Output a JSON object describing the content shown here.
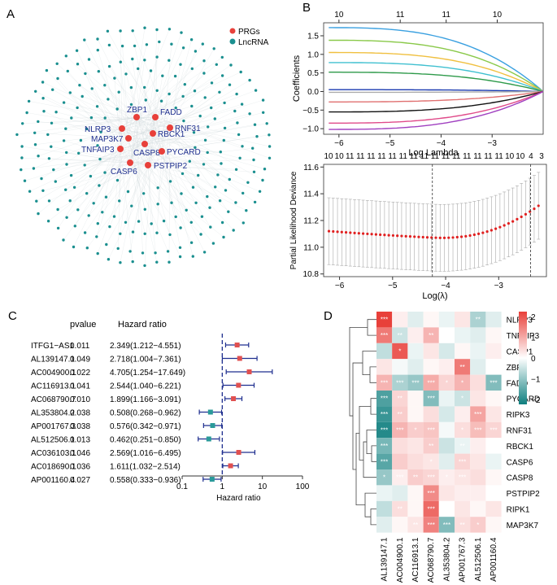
{
  "panel_labels": {
    "a": "A",
    "b": "B",
    "c": "C",
    "d": "D"
  },
  "colors": {
    "prg": "#e8403a",
    "lnc": "#1a8f8f",
    "gene_text": "#1f2f8f",
    "forest_point": "#e05050",
    "forest_point_low": "#2a9a9a",
    "forest_bar": "#1f2f8f",
    "heat_high": "#e8403a",
    "heat_mid": "#ffffff",
    "heat_low": "#0f7f7f"
  },
  "chart_data": [
    {
      "id": "network",
      "type": "network",
      "legend": [
        {
          "label": "PRGs",
          "color": "#e8403a"
        },
        {
          "label": "LncRNA",
          "color": "#1a8f8f"
        }
      ],
      "hub_genes": [
        "ZBP1",
        "FADD",
        "NLRP3",
        "RNF31",
        "MAP3K7",
        "RBCK1",
        "TNFAIP3",
        "CASP8",
        "PYCARD",
        "CASP6",
        "PSTPIP2"
      ]
    },
    {
      "id": "lasso_coef",
      "type": "line",
      "xlabel": "Log Lambda",
      "ylabel": "Coefficients",
      "xlim": [
        -6.3,
        -2.0
      ],
      "ylim": [
        -1.15,
        1.85
      ],
      "xticks": [
        -6,
        -5,
        -4,
        -3
      ],
      "yticks": [
        -1.0,
        -0.5,
        0.0,
        0.5,
        1.0,
        1.5
      ],
      "top_ticks": {
        "positions": [
          -6,
          -4.8,
          -3.9,
          -2.9
        ],
        "labels": [
          "10",
          "11",
          "11",
          "10"
        ]
      },
      "series": [
        {
          "name": "s1",
          "color": "#3aa0e0",
          "start": 1.72
        },
        {
          "name": "s2",
          "color": "#8ac94a",
          "start": 1.38
        },
        {
          "name": "s3",
          "color": "#f0c040",
          "start": 1.05
        },
        {
          "name": "s4",
          "color": "#40c0d0",
          "start": 0.78
        },
        {
          "name": "s5",
          "color": "#2e9a4a",
          "start": 0.52
        },
        {
          "name": "s6",
          "color": "#1a3ab0",
          "start": 0.05
        },
        {
          "name": "s7",
          "color": "#aaaaaa",
          "start": -0.02
        },
        {
          "name": "s8",
          "color": "#e07070",
          "start": -0.28
        },
        {
          "name": "s9",
          "color": "#111111",
          "start": -0.55
        },
        {
          "name": "s10",
          "color": "#e04b8a",
          "start": -0.85
        },
        {
          "name": "s11",
          "color": "#a040c0",
          "start": -1.02
        }
      ]
    },
    {
      "id": "lasso_cv",
      "type": "errorbar",
      "xlabel": "Log(λ)",
      "ylabel": "Partial Likelihood Deviance",
      "xlim": [
        -6.3,
        -2.1
      ],
      "ylim": [
        10.78,
        11.62
      ],
      "xticks": [
        -6,
        -5,
        -4,
        -3
      ],
      "yticks": [
        10.8,
        11.0,
        11.2,
        11.4,
        11.6
      ],
      "top_labels": [
        "10",
        "10",
        "11",
        "11",
        "11",
        "11",
        "11",
        "11",
        "11",
        "11",
        "11",
        "11",
        "11",
        "11",
        "11",
        "11",
        "11",
        "10",
        "10",
        "4",
        "3"
      ],
      "lambda_min": -4.25,
      "lambda_1se": -2.4,
      "curve": {
        "x_start": -6.2,
        "x_end": -2.25,
        "points": 50,
        "min_at": -4.1,
        "min_val": 11.07,
        "left_val": 11.12,
        "right_val": 11.31,
        "se": 0.25
      }
    },
    {
      "id": "forest",
      "type": "forest",
      "header_pvalue": "pvalue",
      "header_hr": "Hazard ratio",
      "xlabel": "Hazard ratio",
      "xscale": "log",
      "xlim": [
        0.1,
        100
      ],
      "xticks": [
        0.1,
        1,
        10,
        100
      ],
      "xtick_labels": [
        "0.1",
        "1",
        "10",
        "100"
      ],
      "rows": [
        {
          "gene": "ITFG1−AS1",
          "pvalue": "0.011",
          "hr_text": "2.349(1.212−4.551)",
          "hr": 2.349,
          "lo": 1.212,
          "hi": 4.551
        },
        {
          "gene": "AL139147.1",
          "pvalue": "0.049",
          "hr_text": "2.718(1.004−7.361)",
          "hr": 2.718,
          "lo": 1.004,
          "hi": 7.361
        },
        {
          "gene": "AC004900.1",
          "pvalue": "0.022",
          "hr_text": "4.705(1.254−17.649)",
          "hr": 4.705,
          "lo": 1.254,
          "hi": 17.649
        },
        {
          "gene": "AC116913.1",
          "pvalue": "0.041",
          "hr_text": "2.544(1.040−6.221)",
          "hr": 2.544,
          "lo": 1.04,
          "hi": 6.221
        },
        {
          "gene": "AC068790.7",
          "pvalue": "0.010",
          "hr_text": "1.899(1.166−3.091)",
          "hr": 1.899,
          "lo": 1.166,
          "hi": 3.091
        },
        {
          "gene": "AL353804.2",
          "pvalue": "0.038",
          "hr_text": "0.508(0.268−0.962)",
          "hr": 0.508,
          "lo": 0.268,
          "hi": 0.962
        },
        {
          "gene": "AP001767.3",
          "pvalue": "0.038",
          "hr_text": "0.576(0.342−0.971)",
          "hr": 0.576,
          "lo": 0.342,
          "hi": 0.971
        },
        {
          "gene": "AL512506.1",
          "pvalue": "0.013",
          "hr_text": "0.462(0.251−0.850)",
          "hr": 0.462,
          "lo": 0.251,
          "hi": 0.85
        },
        {
          "gene": "AC036103.1",
          "pvalue": "0.046",
          "hr_text": "2.569(1.016−6.495)",
          "hr": 2.569,
          "lo": 1.016,
          "hi": 6.495
        },
        {
          "gene": "AC018690.1",
          "pvalue": "0.036",
          "hr_text": "1.611(1.032−2.514)",
          "hr": 1.611,
          "lo": 1.032,
          "hi": 2.514
        },
        {
          "gene": "AP001160.4",
          "pvalue": "0.027",
          "hr_text": "0.558(0.333−0.936)",
          "hr": 0.558,
          "lo": 0.333,
          "hi": 0.936
        }
      ]
    },
    {
      "id": "heatmap",
      "type": "heatmap",
      "rows": [
        "NLRP3",
        "TNFAIP3",
        "CASP1",
        "ZBP1",
        "FADD",
        "PYCARD",
        "RIPK3",
        "RNF31",
        "RBCK1",
        "CASP6",
        "CASP8",
        "PSTPIP2",
        "RIPK1",
        "MAP3K7"
      ],
      "columns": [
        "AL139147.1",
        "AC004900.1",
        "AC116913.1",
        "AC068790.7",
        "AL353804.2",
        "AP001767.3",
        "AL512506.1",
        "AP001160.4"
      ],
      "legend_ticks": [
        2,
        1,
        0,
        -1,
        -2
      ],
      "values": [
        [
          2.4,
          0.2,
          -0.3,
          0.1,
          -0.2,
          0.3,
          -0.8,
          -0.3
        ],
        [
          1.6,
          -0.5,
          0.2,
          0.9,
          0.0,
          -0.2,
          -0.3,
          0.1
        ],
        [
          -0.6,
          2.0,
          -0.2,
          0.3,
          -0.4,
          0.1,
          -0.2,
          0.2
        ],
        [
          0.3,
          -0.1,
          -0.3,
          0.1,
          0.2,
          1.6,
          -0.3,
          0.0
        ],
        [
          0.9,
          -0.8,
          -1.0,
          1.0,
          0.5,
          0.9,
          0.4,
          -1.2
        ],
        [
          -1.7,
          0.5,
          0.1,
          -1.2,
          -0.2,
          -0.5,
          0.3,
          0.1
        ],
        [
          -1.9,
          0.6,
          0.1,
          0.4,
          -0.4,
          0.2,
          1.1,
          0.3
        ],
        [
          -2.1,
          0.9,
          0.6,
          0.7,
          -0.1,
          0.4,
          0.8,
          0.5
        ],
        [
          -1.3,
          0.4,
          0.3,
          0.6,
          -0.5,
          -0.2,
          0.2,
          0.0
        ],
        [
          -1.6,
          0.6,
          0.4,
          0.3,
          -0.3,
          0.5,
          0.3,
          -0.2
        ],
        [
          -1.0,
          0.2,
          0.6,
          0.5,
          0.2,
          0.3,
          0.4,
          0.1
        ],
        [
          -0.2,
          -0.3,
          0.1,
          1.4,
          0.3,
          0.2,
          0.2,
          0.0
        ],
        [
          -0.6,
          0.4,
          0.1,
          1.8,
          0.0,
          0.3,
          0.1,
          0.3
        ],
        [
          -0.3,
          0.1,
          0.3,
          1.5,
          -1.2,
          0.4,
          0.6,
          0.1
        ]
      ],
      "stars": [
        [
          "***",
          "",
          "",
          "",
          "",
          "",
          "**",
          ""
        ],
        [
          "***",
          "**",
          "",
          "**",
          "",
          "",
          "",
          ""
        ],
        [
          "",
          "*",
          "",
          "",
          "",
          "",
          "",
          ""
        ],
        [
          "",
          "",
          "",
          "",
          "",
          "**",
          "",
          ""
        ],
        [
          "***",
          "***",
          "***",
          "***",
          "*",
          "*",
          "",
          "***"
        ],
        [
          "***",
          "**",
          "",
          "***",
          "",
          "*",
          "",
          ""
        ],
        [
          "***",
          "**",
          "",
          "",
          "",
          "",
          "***",
          ""
        ],
        [
          "***",
          "***",
          "*",
          "***",
          "",
          "*",
          "***",
          "***"
        ],
        [
          "***",
          "",
          "",
          "**",
          "",
          "**",
          "",
          ""
        ],
        [
          "***",
          "",
          "",
          "*",
          "",
          "***",
          "",
          ""
        ],
        [
          "*",
          "***",
          "**",
          "***",
          "*",
          "***",
          "",
          ""
        ],
        [
          "",
          "",
          "",
          "***",
          "",
          "",
          "",
          ""
        ],
        [
          "",
          "**",
          "",
          "***",
          "",
          "",
          "",
          ""
        ],
        [
          "",
          "",
          "**",
          "***",
          "***",
          "**",
          "*",
          ""
        ]
      ]
    }
  ]
}
